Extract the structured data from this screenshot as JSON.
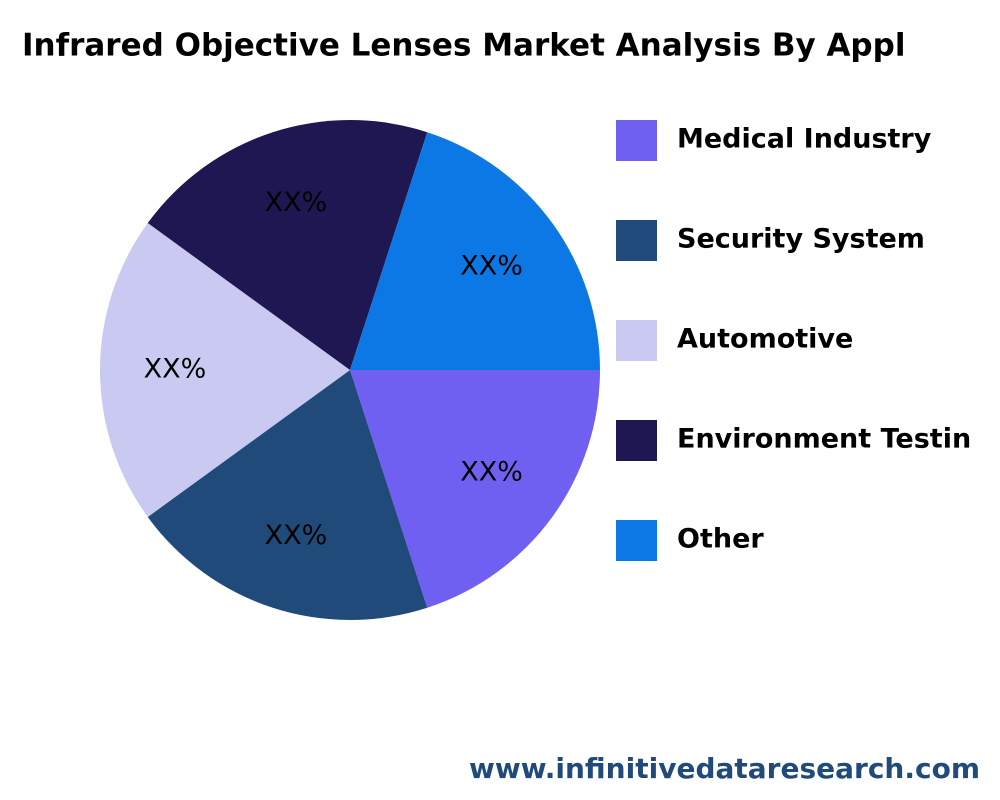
{
  "chart_data": {
    "type": "pie",
    "title": "Infrared Objective Lenses  Market Analysis By Appl",
    "categories": [
      "Medical Industry",
      "Security System",
      "Automotive",
      "Environment Testin",
      "Other"
    ],
    "values": [
      20,
      20,
      20,
      20,
      20
    ],
    "value_labels": [
      "XX%",
      "XX%",
      "XX%",
      "XX%",
      "XX%"
    ],
    "colors": [
      "#7060f2",
      "#1f4a7a",
      "#c9c9f1",
      "#1e1752",
      "#0c78e6"
    ],
    "legend": "right",
    "source": "www.infinitivedataresearch.com"
  }
}
